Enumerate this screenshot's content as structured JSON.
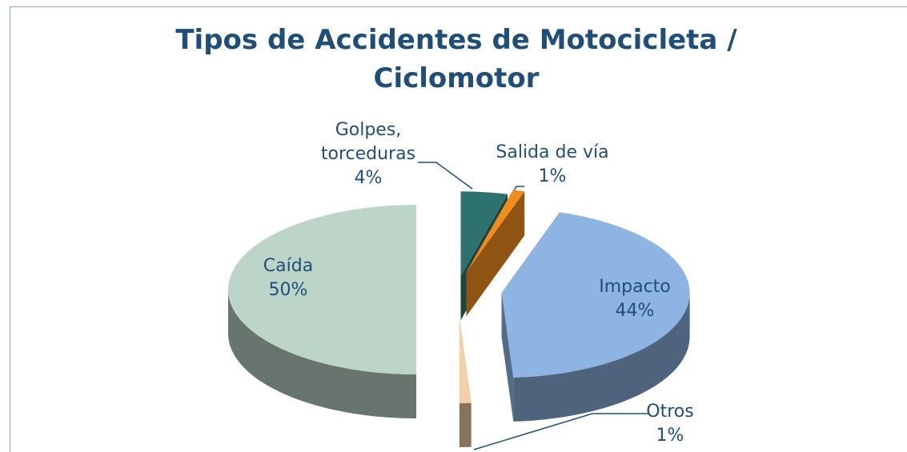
{
  "chart_data": {
    "type": "pie",
    "title": "Tipos de Accidentes de Motocicleta / Ciclomotor",
    "categories": [
      "Golpes, torceduras",
      "Salida de vía",
      "Impacto",
      "Otros",
      "Caída"
    ],
    "values": [
      4,
      1,
      44,
      1,
      50
    ],
    "value_labels": [
      "4%",
      "1%",
      "44%",
      "1%",
      "50%"
    ],
    "colors": [
      "#2e7270",
      "#f08c1e",
      "#8db4e2",
      "#f5cfa8",
      "#bcd5c8"
    ]
  }
}
